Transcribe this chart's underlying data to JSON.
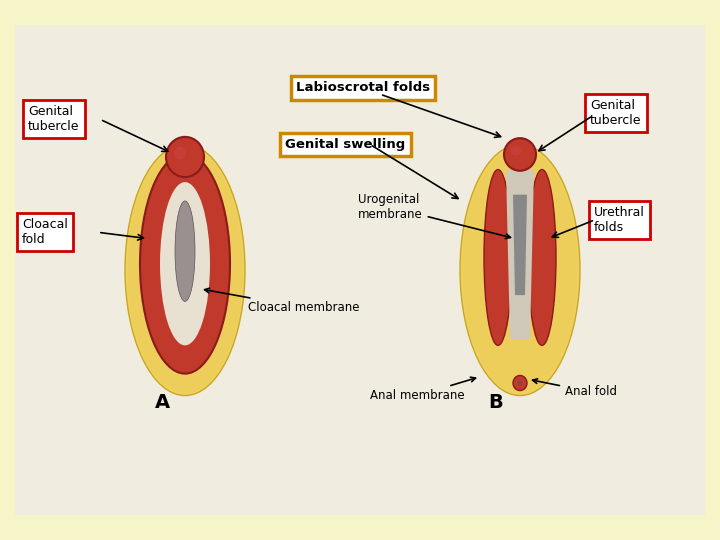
{
  "bg_outer": "#f5f5c8",
  "bg_inner": "#f0ede0",
  "title": "Labioscrotal folds",
  "yellow_fill": "#f5d87a",
  "red_dark": "#8B1a1a",
  "red_mid": "#c0392b",
  "red_bright": "#c0392b",
  "label_A": "A",
  "label_B": "B",
  "labels_red_box": [
    "Genital\ntubercle",
    "Cloacal\nfold",
    "Genital\ntubercle",
    "Urethral\nfolds"
  ],
  "labels_yellow_box": [
    "Labioscrotal folds",
    "Genital swelling"
  ],
  "labels_plain": [
    "Cloacal membrane",
    "Urogenital\nmembrane",
    "Anal membrane",
    "Anal fold"
  ]
}
